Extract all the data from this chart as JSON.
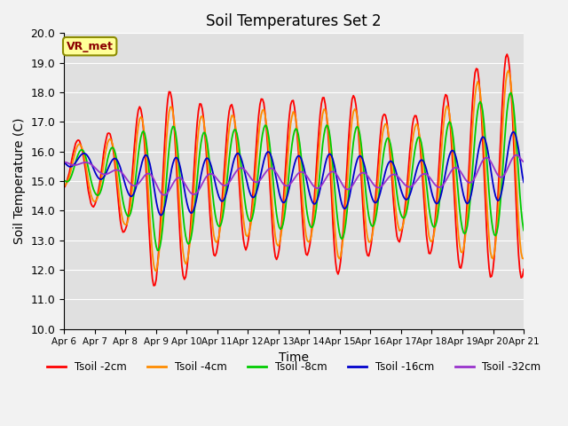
{
  "title": "Soil Temperatures Set 2",
  "xlabel": "Time",
  "ylabel": "Soil Temperature (C)",
  "ylim": [
    10.0,
    20.0
  ],
  "yticks": [
    10.0,
    11.0,
    12.0,
    13.0,
    14.0,
    15.0,
    16.0,
    17.0,
    18.0,
    19.0,
    20.0
  ],
  "xtick_labels": [
    "Apr 6",
    "Apr 7",
    "Apr 8",
    "Apr 9",
    "Apr 10",
    "Apr 11",
    "Apr 12",
    "Apr 13",
    "Apr 14",
    "Apr 15",
    "Apr 16",
    "Apr 17",
    "Apr 18",
    "Apr 19",
    "Apr 20",
    "Apr 21"
  ],
  "annotation_text": "VR_met",
  "annotation_box_color": "#FFFF99",
  "annotation_box_edge": "#8B8B00",
  "annotation_text_color": "#8B0000",
  "bg_color": "#E0E0E0",
  "grid_color": "#FFFFFF",
  "fig_bg_color": "#F2F2F2",
  "lines": [
    {
      "label": "Tsoil -2cm",
      "color": "#FF0000",
      "linewidth": 1.3
    },
    {
      "label": "Tsoil -4cm",
      "color": "#FF8C00",
      "linewidth": 1.3
    },
    {
      "label": "Tsoil -8cm",
      "color": "#00CC00",
      "linewidth": 1.3
    },
    {
      "label": "Tsoil -16cm",
      "color": "#0000CC",
      "linewidth": 1.3
    },
    {
      "label": "Tsoil -32cm",
      "color": "#9933CC",
      "linewidth": 1.3
    }
  ]
}
